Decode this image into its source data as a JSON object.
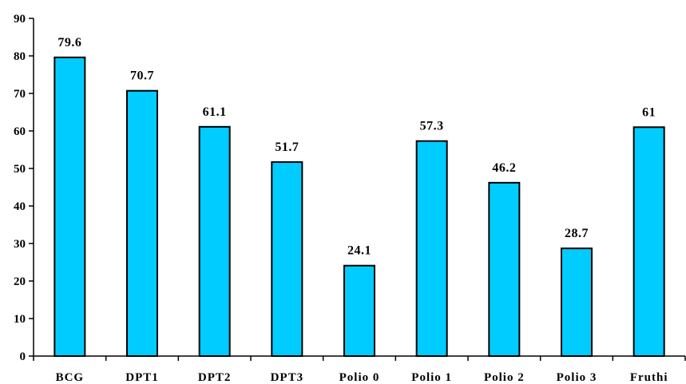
{
  "chart_data": {
    "type": "bar",
    "title": "",
    "xlabel": "",
    "ylabel": "",
    "categories": [
      "BCG",
      "DPT1",
      "DPT2",
      "DPT3",
      "Polio 0",
      "Polio 1",
      "Polio 2",
      "Polio 3",
      "Fruthi"
    ],
    "values": [
      79.6,
      70.7,
      61.1,
      51.7,
      24.1,
      57.3,
      46.2,
      28.7,
      61
    ],
    "data_labels": [
      "79.6",
      "70.7",
      "61.1",
      "51.7",
      "24.1",
      "57.3",
      "46.2",
      "28.7",
      "61"
    ],
    "ylim": [
      0,
      90
    ],
    "yticks": [
      0,
      10,
      20,
      30,
      40,
      50,
      60,
      70,
      80,
      90
    ],
    "grid": false,
    "legend": "none",
    "bar_color": "#00ccff",
    "bar_edge_color": "#000000"
  }
}
